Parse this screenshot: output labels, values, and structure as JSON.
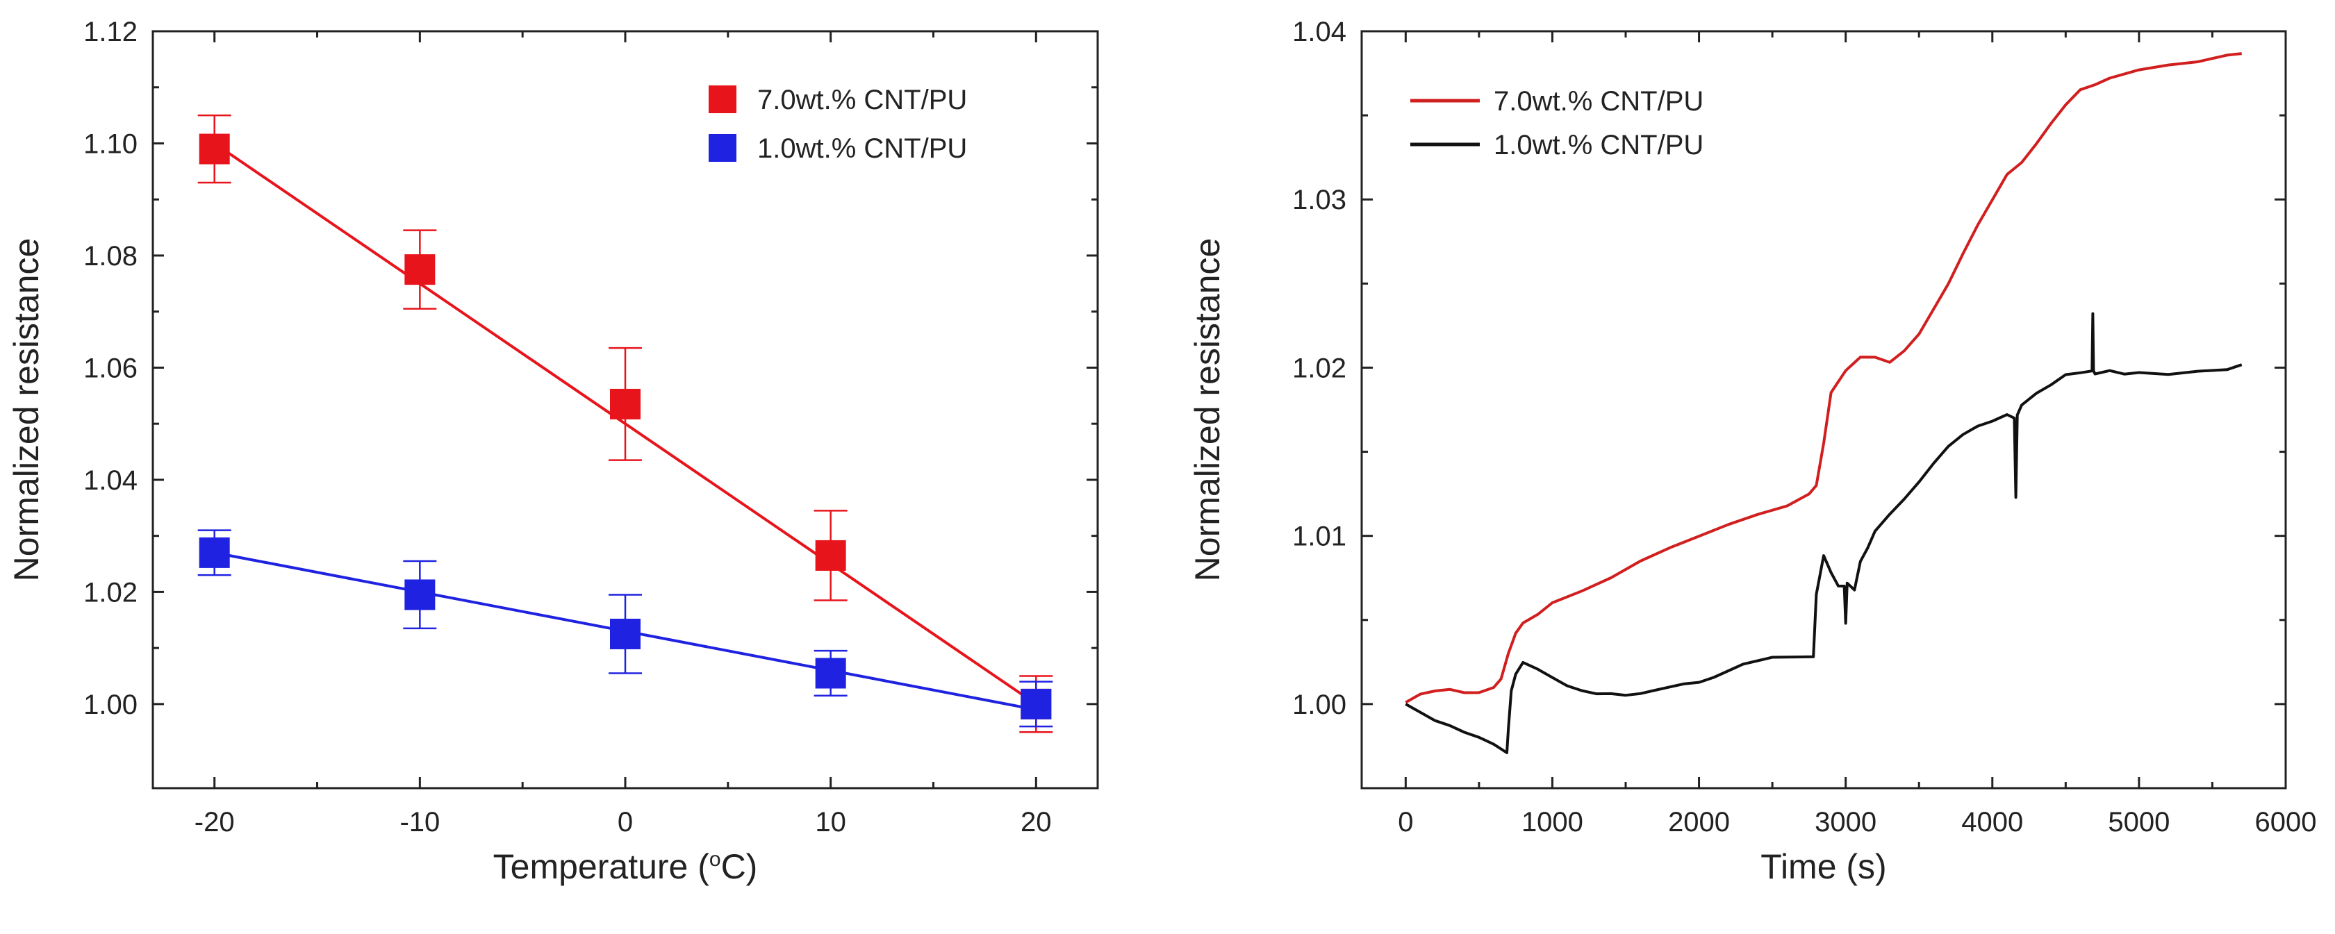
{
  "chart_data": [
    {
      "type": "line",
      "title": "",
      "xlabel": "Temperature (°C)",
      "xlabel_main": "Temperature (",
      "xlabel_degree": "o",
      "xlabel_unit": "C)",
      "ylabel": "Normalized resistance",
      "xlim": [
        -23,
        23
      ],
      "ylim": [
        0.985,
        1.12
      ],
      "xticks": [
        -20,
        -10,
        0,
        10,
        20
      ],
      "yticks": [
        1.0,
        1.02,
        1.04,
        1.06,
        1.08,
        1.1,
        1.12
      ],
      "xtick_labels": [
        "-20",
        "-10",
        "0",
        "10",
        "20"
      ],
      "ytick_labels": [
        "1.00",
        "1.02",
        "1.04",
        "1.06",
        "1.08",
        "1.10",
        "1.12"
      ],
      "legend_position": "top-right",
      "series": [
        {
          "name": "7.0wt.% CNT/PU",
          "color": "#e8141b",
          "marker": "square",
          "x": [
            -20,
            -10,
            0,
            10,
            20
          ],
          "y": [
            1.099,
            1.0775,
            1.0535,
            1.0265,
            1.0
          ],
          "yerr": [
            0.006,
            0.007,
            0.01,
            0.008,
            0.005
          ],
          "fit": [
            [
              -20,
              1.1
            ],
            [
              20,
              1.0
            ]
          ]
        },
        {
          "name": "1.0wt.% CNT/PU",
          "color": "#1f22e0",
          "marker": "square",
          "x": [
            -20,
            -10,
            0,
            10,
            20
          ],
          "y": [
            1.027,
            1.0195,
            1.0125,
            1.0055,
            1.0
          ],
          "yerr": [
            0.004,
            0.006,
            0.007,
            0.004,
            0.004
          ],
          "fit": [
            [
              -20,
              1.027
            ],
            [
              20,
              0.999
            ]
          ]
        }
      ]
    },
    {
      "type": "line",
      "title": "",
      "xlabel": "Time (s)",
      "ylabel": "Normalized resistance",
      "xlim": [
        -300,
        6000
      ],
      "ylim": [
        0.995,
        1.04
      ],
      "xticks": [
        0,
        1000,
        2000,
        3000,
        4000,
        5000,
        6000
      ],
      "yticks": [
        1.0,
        1.01,
        1.02,
        1.03,
        1.04
      ],
      "xtick_labels": [
        "0",
        "1000",
        "2000",
        "3000",
        "4000",
        "5000",
        "6000"
      ],
      "ytick_labels": [
        "1.00",
        "1.01",
        "1.02",
        "1.03",
        "1.04"
      ],
      "legend_position": "top-left",
      "series": [
        {
          "name": "7.0wt.% CNT/PU",
          "color": "#d11f1f",
          "x": [
            0,
            100,
            200,
            300,
            400,
            500,
            600,
            650,
            700,
            750,
            800,
            900,
            1000,
            1200,
            1400,
            1600,
            1800,
            2000,
            2200,
            2400,
            2600,
            2750,
            2800,
            2850,
            2900,
            3000,
            3100,
            3200,
            3300,
            3400,
            3500,
            3600,
            3700,
            3800,
            3900,
            4000,
            4100,
            4200,
            4300,
            4400,
            4500,
            4600,
            4700,
            4800,
            5000,
            5200,
            5400,
            5600,
            5700
          ],
          "y": [
            1.0001,
            1.0006,
            1.0008,
            1.0009,
            1.0007,
            1.0007,
            1.001,
            1.0015,
            1.003,
            1.0042,
            1.0048,
            1.0053,
            1.006,
            1.0067,
            1.0075,
            1.0085,
            1.0093,
            1.01,
            1.0107,
            1.0113,
            1.0118,
            1.0125,
            1.013,
            1.0155,
            1.0185,
            1.0198,
            1.0206,
            1.0206,
            1.0203,
            1.021,
            1.022,
            1.0235,
            1.025,
            1.0268,
            1.0285,
            1.03,
            1.0315,
            1.0322,
            1.0333,
            1.0345,
            1.0356,
            1.0365,
            1.0368,
            1.0372,
            1.0377,
            1.038,
            1.0382,
            1.0386,
            1.0387
          ]
        },
        {
          "name": "1.0wt.% CNT/PU",
          "color": "#111111",
          "x": [
            0,
            100,
            200,
            300,
            400,
            500,
            600,
            690,
            700,
            720,
            750,
            800,
            900,
            1000,
            1100,
            1200,
            1300,
            1400,
            1500,
            1600,
            1700,
            1800,
            1900,
            2000,
            2100,
            2200,
            2300,
            2400,
            2500,
            2600,
            2700,
            2780,
            2800,
            2850,
            2900,
            2950,
            2990,
            3000,
            3010,
            3060,
            3100,
            3150,
            3200,
            3300,
            3400,
            3500,
            3600,
            3700,
            3800,
            3900,
            4000,
            4100,
            4150,
            4160,
            4170,
            4200,
            4300,
            4400,
            4500,
            4600,
            4680,
            4685,
            4690,
            4700,
            4800,
            4900,
            5000,
            5200,
            5400,
            5600,
            5700
          ],
          "y": [
            1.0,
            0.9995,
            0.999,
            0.9987,
            0.9983,
            0.998,
            0.9976,
            0.9971,
            0.9985,
            1.0008,
            1.0018,
            1.0025,
            1.0021,
            1.0016,
            1.0011,
            1.0008,
            1.0006,
            1.0006,
            1.0005,
            1.0006,
            1.0008,
            1.001,
            1.0012,
            1.0013,
            1.0016,
            1.002,
            1.0024,
            1.0026,
            1.0028,
            1.0028,
            1.0028,
            1.0028,
            1.0065,
            1.0088,
            1.0078,
            1.007,
            1.007,
            1.0048,
            1.0072,
            1.0068,
            1.0085,
            1.0093,
            1.0103,
            1.0113,
            1.0122,
            1.0132,
            1.0143,
            1.0153,
            1.016,
            1.0165,
            1.0168,
            1.0172,
            1.017,
            1.0123,
            1.0172,
            1.0178,
            1.0185,
            1.019,
            1.0196,
            1.0197,
            1.0198,
            1.0232,
            1.0198,
            1.0196,
            1.0198,
            1.0196,
            1.0197,
            1.0196,
            1.0198,
            1.0199,
            1.0202
          ]
        }
      ]
    }
  ]
}
